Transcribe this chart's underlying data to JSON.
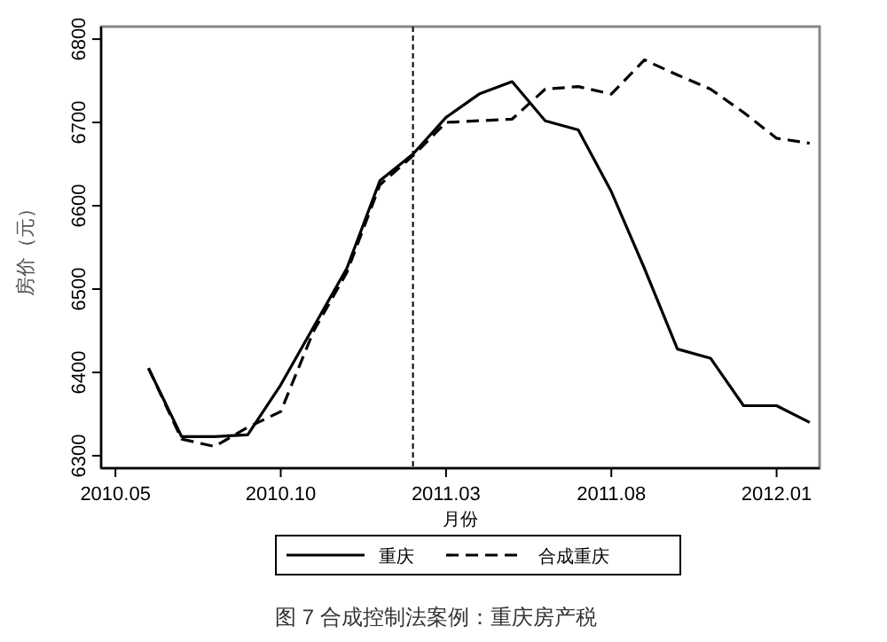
{
  "chart_data": {
    "type": "line",
    "ylabel": "房价（元）",
    "xlabel": "月份",
    "x": [
      "2010-06",
      "2010-07",
      "2010-08",
      "2010-09",
      "2010-10",
      "2010-11",
      "2010-12",
      "2011-01",
      "2011-02",
      "2011-03",
      "2011-04",
      "2011-05",
      "2011-06",
      "2011-07",
      "2011-08",
      "2011-09",
      "2011-10",
      "2011-11",
      "2011-12",
      "2012-01",
      "2012-02"
    ],
    "series": [
      {
        "name": "重庆",
        "color": "#000000",
        "line_style": "solid",
        "values": [
          6405,
          6323,
          6323,
          6325,
          6385,
          6455,
          6525,
          6630,
          6662,
          6706,
          6734,
          6749,
          6702,
          6691,
          6617,
          6525,
          6428,
          6417,
          6360,
          6360,
          6340
        ]
      },
      {
        "name": "合成重庆",
        "color": "#000000",
        "line_style": "dashed",
        "values": [
          6405,
          6320,
          6311,
          6334,
          6353,
          6450,
          6520,
          6625,
          6660,
          6700,
          6702,
          6704,
          6740,
          6743,
          6734,
          6775,
          6757,
          6740,
          6712,
          6681,
          6675
        ]
      }
    ],
    "xlim": [
      "2010-04-18",
      "2012-02-10"
    ],
    "ylim": [
      6285,
      6815
    ],
    "xticks": [
      {
        "value": "2010-05",
        "label": "2010.05"
      },
      {
        "value": "2010-10",
        "label": "2010.10"
      },
      {
        "value": "2011-03",
        "label": "2011.03"
      },
      {
        "value": "2011-08",
        "label": "2011.08"
      },
      {
        "value": "2012-01",
        "label": "2012.01"
      }
    ],
    "yticks": [
      6300,
      6400,
      6500,
      6600,
      6700,
      6800
    ],
    "ref_lines": [
      {
        "axis": "x",
        "value": "2011-02",
        "color": "#000000",
        "line_style": "dashed"
      }
    ],
    "legend": "bottom",
    "grid": false,
    "annotations": [
      "图 7 合成控制法案例：重庆房产税"
    ]
  }
}
